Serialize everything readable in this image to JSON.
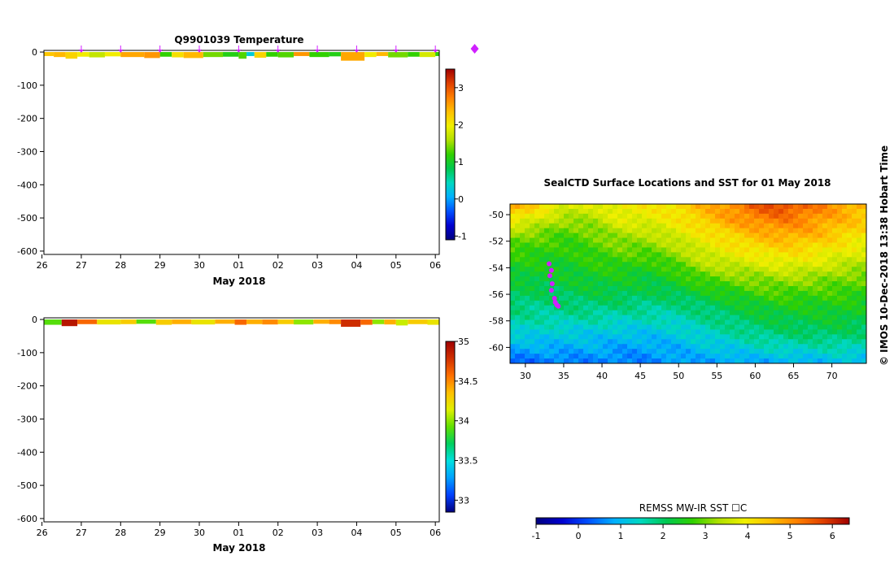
{
  "colors": {
    "temp_scale": [
      "#00007f",
      "#0000d0",
      "#0050ff",
      "#00b0ff",
      "#00d8c0",
      "#00c850",
      "#30d000",
      "#b0e000",
      "#f0f000",
      "#ffc000",
      "#ff8000",
      "#e04000",
      "#a00000"
    ],
    "sal_scale": [
      "#000080",
      "#0040ff",
      "#00a0ff",
      "#00e0e0",
      "#00d060",
      "#60e000",
      "#e0f000",
      "#ffc000",
      "#ff7000",
      "#d03000",
      "#a00000"
    ],
    "marker": "#d020ff"
  },
  "watermark": "©  IMOS 10-Dec-2018 13:38 Hobart Time",
  "chart_data": [
    {
      "id": "temperature-profile",
      "type": "heatmap",
      "title": "Q9901039  Temperature",
      "xlabel": "May 2018",
      "x_ticks": [
        "26",
        "27",
        "28",
        "29",
        "30",
        "01",
        "02",
        "03",
        "04",
        "05",
        "06"
      ],
      "y_ticks": [
        "0",
        "-100",
        "-200",
        "-300",
        "-400",
        "-500",
        "-600"
      ],
      "ylim": [
        -610,
        5
      ],
      "colorbar": {
        "ticks": [
          "3",
          "2",
          "1",
          "0",
          "-1"
        ],
        "range": [
          -1.1,
          3.5
        ]
      },
      "profile_markers_days": [
        1,
        2,
        3,
        4,
        5,
        6,
        7,
        8,
        9,
        10,
        11
      ],
      "cells": [
        {
          "x0": 0.0,
          "x1": 0.3,
          "d0": 0,
          "d1": -12,
          "v": 2.3
        },
        {
          "x0": 0.3,
          "x1": 0.6,
          "d0": 0,
          "d1": -15,
          "v": 2.4
        },
        {
          "x0": 0.6,
          "x1": 0.9,
          "d0": 0,
          "d1": -20,
          "v": 2.2
        },
        {
          "x0": 0.9,
          "x1": 1.2,
          "d0": 0,
          "d1": -14,
          "v": 2.0
        },
        {
          "x0": 1.2,
          "x1": 1.6,
          "d0": 0,
          "d1": -16,
          "v": 1.7
        },
        {
          "x0": 1.6,
          "x1": 2.0,
          "d0": 0,
          "d1": -13,
          "v": 2.0
        },
        {
          "x0": 2.0,
          "x1": 2.6,
          "d0": 0,
          "d1": -15,
          "v": 2.5
        },
        {
          "x0": 2.6,
          "x1": 3.0,
          "d0": 0,
          "d1": -18,
          "v": 2.6
        },
        {
          "x0": 3.0,
          "x1": 3.3,
          "d0": 0,
          "d1": -14,
          "v": 1.2
        },
        {
          "x0": 3.3,
          "x1": 3.6,
          "d0": 0,
          "d1": -16,
          "v": 2.1
        },
        {
          "x0": 3.6,
          "x1": 4.1,
          "d0": 0,
          "d1": -18,
          "v": 2.4
        },
        {
          "x0": 4.1,
          "x1": 4.6,
          "d0": 0,
          "d1": -15,
          "v": 1.4
        },
        {
          "x0": 4.6,
          "x1": 5.0,
          "d0": 0,
          "d1": -14,
          "v": 1.1
        },
        {
          "x0": 5.0,
          "x1": 5.2,
          "d0": 0,
          "d1": -20,
          "v": 1.3
        },
        {
          "x0": 5.2,
          "x1": 5.4,
          "d0": 0,
          "d1": -12,
          "v": 0.3
        },
        {
          "x0": 5.4,
          "x1": 5.7,
          "d0": 0,
          "d1": -17,
          "v": 2.2
        },
        {
          "x0": 5.7,
          "x1": 6.0,
          "d0": 0,
          "d1": -14,
          "v": 1.2
        },
        {
          "x0": 6.0,
          "x1": 6.4,
          "d0": 0,
          "d1": -16,
          "v": 1.3
        },
        {
          "x0": 6.4,
          "x1": 6.8,
          "d0": 0,
          "d1": -12,
          "v": 2.6
        },
        {
          "x0": 6.8,
          "x1": 7.3,
          "d0": 0,
          "d1": -15,
          "v": 1.2
        },
        {
          "x0": 7.3,
          "x1": 7.6,
          "d0": 0,
          "d1": -13,
          "v": 1.1
        },
        {
          "x0": 7.6,
          "x1": 8.2,
          "d0": 0,
          "d1": -26,
          "v": 2.5
        },
        {
          "x0": 8.2,
          "x1": 8.5,
          "d0": 0,
          "d1": -15,
          "v": 2.0
        },
        {
          "x0": 8.5,
          "x1": 8.8,
          "d0": 0,
          "d1": -12,
          "v": 2.4
        },
        {
          "x0": 8.8,
          "x1": 9.3,
          "d0": 0,
          "d1": -16,
          "v": 1.4
        },
        {
          "x0": 9.3,
          "x1": 9.6,
          "d0": 0,
          "d1": -14,
          "v": 1.2
        },
        {
          "x0": 9.6,
          "x1": 10.0,
          "d0": 0,
          "d1": -15,
          "v": 1.8
        },
        {
          "x0": 10.0,
          "x1": 10.1,
          "d0": 0,
          "d1": -12,
          "v": 1.2
        }
      ]
    },
    {
      "id": "salinity-profile",
      "type": "heatmap",
      "title": "",
      "xlabel": "May 2018",
      "x_ticks": [
        "26",
        "27",
        "28",
        "29",
        "30",
        "01",
        "02",
        "03",
        "04",
        "05",
        "06"
      ],
      "y_ticks": [
        "0",
        "-100",
        "-200",
        "-300",
        "-400",
        "-500",
        "-600"
      ],
      "ylim": [
        -610,
        5
      ],
      "colorbar": {
        "ticks": [
          "35",
          "34.5",
          "34",
          "33.5",
          "33"
        ],
        "range": [
          32.85,
          35.0
        ]
      },
      "cells": [
        {
          "x0": 0.0,
          "x1": 0.5,
          "d0": 0,
          "d1": -16,
          "v": 33.9
        },
        {
          "x0": 0.5,
          "x1": 0.9,
          "d0": 0,
          "d1": -20,
          "v": 34.9
        },
        {
          "x0": 0.9,
          "x1": 1.4,
          "d0": 0,
          "d1": -14,
          "v": 34.6
        },
        {
          "x0": 1.4,
          "x1": 2.0,
          "d0": 0,
          "d1": -15,
          "v": 34.2
        },
        {
          "x0": 2.0,
          "x1": 2.4,
          "d0": 0,
          "d1": -14,
          "v": 34.3
        },
        {
          "x0": 2.4,
          "x1": 2.9,
          "d0": 0,
          "d1": -13,
          "v": 33.9
        },
        {
          "x0": 2.9,
          "x1": 3.3,
          "d0": 0,
          "d1": -16,
          "v": 34.3
        },
        {
          "x0": 3.3,
          "x1": 3.8,
          "d0": 0,
          "d1": -14,
          "v": 34.4
        },
        {
          "x0": 3.8,
          "x1": 4.4,
          "d0": 0,
          "d1": -15,
          "v": 34.2
        },
        {
          "x0": 4.4,
          "x1": 4.9,
          "d0": 0,
          "d1": -13,
          "v": 34.4
        },
        {
          "x0": 4.9,
          "x1": 5.2,
          "d0": 0,
          "d1": -16,
          "v": 34.6
        },
        {
          "x0": 5.2,
          "x1": 5.6,
          "d0": 0,
          "d1": -14,
          "v": 34.4
        },
        {
          "x0": 5.6,
          "x1": 6.0,
          "d0": 0,
          "d1": -15,
          "v": 34.5
        },
        {
          "x0": 6.0,
          "x1": 6.4,
          "d0": 0,
          "d1": -14,
          "v": 34.3
        },
        {
          "x0": 6.4,
          "x1": 6.9,
          "d0": 0,
          "d1": -15,
          "v": 34.0
        },
        {
          "x0": 6.9,
          "x1": 7.3,
          "d0": 0,
          "d1": -13,
          "v": 34.4
        },
        {
          "x0": 7.3,
          "x1": 7.6,
          "d0": 0,
          "d1": -14,
          "v": 34.5
        },
        {
          "x0": 7.6,
          "x1": 8.1,
          "d0": 0,
          "d1": -22,
          "v": 34.8
        },
        {
          "x0": 8.1,
          "x1": 8.4,
          "d0": 0,
          "d1": -16,
          "v": 34.6
        },
        {
          "x0": 8.4,
          "x1": 8.7,
          "d0": 0,
          "d1": -14,
          "v": 34.0
        },
        {
          "x0": 8.7,
          "x1": 9.0,
          "d0": 0,
          "d1": -15,
          "v": 34.4
        },
        {
          "x0": 9.0,
          "x1": 9.3,
          "d0": 0,
          "d1": -18,
          "v": 34.1
        },
        {
          "x0": 9.3,
          "x1": 9.8,
          "d0": 0,
          "d1": -14,
          "v": 34.3
        },
        {
          "x0": 9.8,
          "x1": 10.1,
          "d0": 0,
          "d1": -16,
          "v": 34.2
        }
      ]
    },
    {
      "id": "sst-map",
      "type": "heatmap",
      "title": "SealCTD Surface Locations and SST for 01 May 2018",
      "x_ticks": [
        "30",
        "35",
        "40",
        "45",
        "50",
        "55",
        "60",
        "65",
        "70"
      ],
      "y_ticks": [
        "-50",
        "-52",
        "-54",
        "-56",
        "-58",
        "-60"
      ],
      "xlim": [
        28,
        74.5
      ],
      "ylim": [
        -61.2,
        -49.2
      ],
      "colorbar_label": "REMSS MW-IR SST ☐C",
      "colorbar": {
        "ticks": [
          "-1",
          "0",
          "1",
          "2",
          "3",
          "4",
          "5",
          "6"
        ],
        "range": [
          -1,
          6.4
        ]
      },
      "sst_field": [
        [
          4.7,
          4.2,
          3.7,
          3.7,
          4.0,
          4.0,
          4.2,
          4.6,
          5.0,
          5.5,
          5.7,
          5.3,
          4.9,
          4.6
        ],
        [
          4.0,
          3.6,
          3.2,
          3.3,
          3.8,
          3.8,
          4.0,
          4.4,
          4.8,
          5.1,
          5.2,
          5.0,
          4.7,
          4.4
        ],
        [
          3.2,
          3.0,
          2.8,
          3.0,
          3.3,
          3.4,
          3.7,
          4.0,
          4.3,
          4.6,
          4.8,
          4.7,
          4.4,
          4.1
        ],
        [
          2.8,
          2.7,
          2.6,
          2.8,
          3.0,
          3.0,
          3.3,
          3.7,
          4.0,
          4.2,
          4.3,
          4.2,
          4.0,
          3.8
        ],
        [
          2.5,
          2.5,
          2.4,
          2.6,
          2.7,
          2.6,
          2.9,
          3.4,
          3.6,
          3.7,
          3.9,
          3.8,
          3.6,
          3.4
        ],
        [
          2.3,
          2.3,
          2.3,
          2.4,
          2.4,
          2.3,
          2.5,
          2.9,
          3.1,
          3.2,
          3.3,
          3.3,
          3.1,
          3.0
        ],
        [
          2.1,
          2.1,
          2.1,
          2.2,
          2.2,
          2.1,
          2.2,
          2.4,
          2.6,
          2.8,
          2.9,
          2.8,
          2.8,
          2.7
        ],
        [
          1.9,
          1.8,
          1.9,
          1.9,
          1.9,
          1.8,
          1.8,
          2.0,
          2.2,
          2.4,
          2.5,
          2.5,
          2.5,
          2.4
        ],
        [
          1.7,
          1.6,
          1.6,
          1.6,
          1.5,
          1.5,
          1.5,
          1.7,
          1.9,
          2.1,
          2.2,
          2.2,
          2.3,
          2.2
        ],
        [
          1.3,
          1.3,
          1.2,
          1.2,
          1.1,
          1.1,
          1.2,
          1.4,
          1.6,
          1.8,
          1.9,
          2.0,
          2.0,
          1.9
        ],
        [
          0.9,
          0.9,
          0.9,
          0.9,
          0.8,
          0.8,
          0.9,
          1.1,
          1.2,
          1.4,
          1.5,
          1.5,
          1.6,
          1.5
        ],
        [
          0.4,
          0.5,
          0.5,
          0.6,
          0.5,
          0.6,
          0.7,
          0.8,
          0.8,
          0.9,
          0.9,
          1.0,
          1.1,
          1.0
        ]
      ],
      "seal_locations": [
        {
          "lon": 33.1,
          "lat": -53.7
        },
        {
          "lon": 33.4,
          "lat": -54.2
        },
        {
          "lon": 33.2,
          "lat": -54.6
        },
        {
          "lon": 33.5,
          "lat": -55.2
        },
        {
          "lon": 33.4,
          "lat": -55.7
        },
        {
          "lon": 33.8,
          "lat": -56.3
        },
        {
          "lon": 33.9,
          "lat": -56.6
        },
        {
          "lon": 34.1,
          "lat": -56.8
        },
        {
          "lon": 34.3,
          "lat": -56.9
        }
      ]
    }
  ]
}
